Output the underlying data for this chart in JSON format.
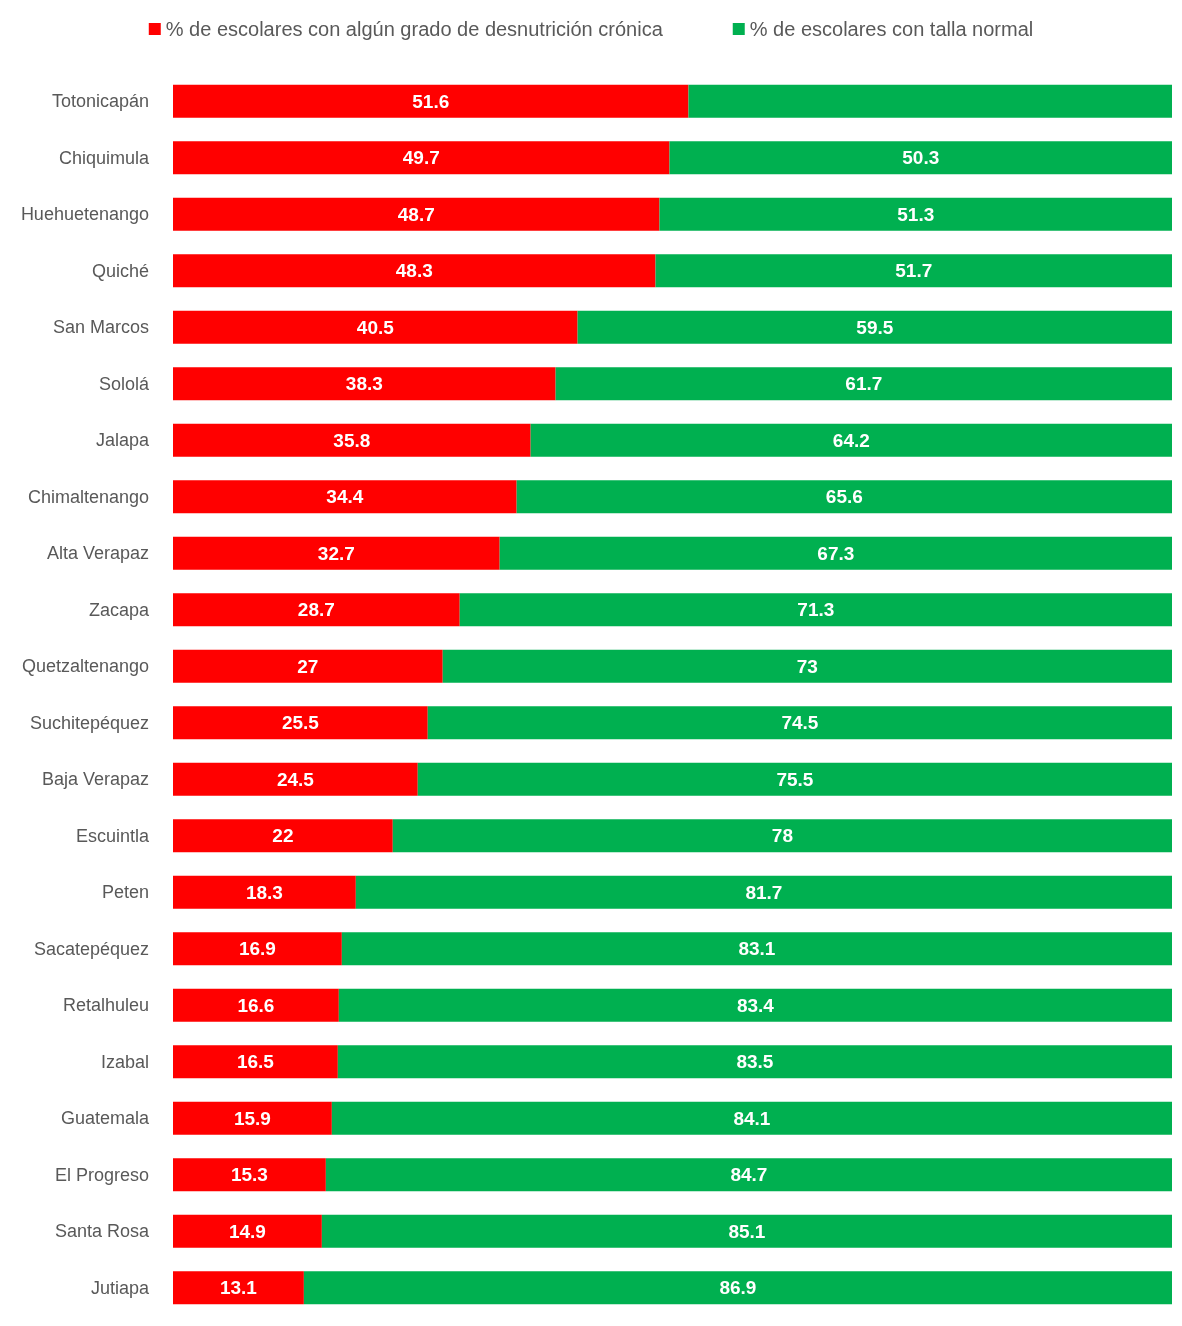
{
  "chart_data": {
    "type": "bar",
    "orientation": "horizontal",
    "stacked": true,
    "legend": "top",
    "xlim": [
      0,
      100
    ],
    "tick_labels": "y",
    "categories": [
      "Totonicapán",
      "Chiquimula",
      "Huehuetenango",
      "Quiché",
      "San Marcos",
      "Sololá",
      "Jalapa",
      "Chimaltenango",
      "Alta Verapaz",
      "Zacapa",
      "Quetzaltenango",
      "Suchitepéquez",
      "Baja Verapaz",
      "Escuintla",
      "Peten",
      "Sacatepéquez",
      "Retalhuleu",
      "Izabal",
      "Guatemala",
      "El Progreso",
      "Santa Rosa",
      "Jutiapa"
    ],
    "series": [
      {
        "name": "% de escolares con algún grado de desnutrición crónica",
        "color": "#ff0000",
        "values": [
          51.6,
          49.7,
          48.7,
          48.3,
          40.5,
          38.3,
          35.8,
          34.4,
          32.7,
          28.7,
          27,
          25.5,
          24.5,
          22,
          18.3,
          16.9,
          16.6,
          16.5,
          15.9,
          15.3,
          14.9,
          13.1
        ],
        "value_labels": [
          "51.6",
          "49.7",
          "48.7",
          "48.3",
          "40.5",
          "38.3",
          "35.8",
          "34.4",
          "32.7",
          "28.7",
          "27",
          "25.5",
          "24.5",
          "22",
          "18.3",
          "16.9",
          "16.6",
          "16.5",
          "15.9",
          "15.3",
          "14.9",
          "13.1"
        ]
      },
      {
        "name": "% de escolares con talla normal",
        "color": "#00b050",
        "values": [
          48.4,
          50.3,
          51.3,
          51.7,
          59.5,
          61.7,
          64.2,
          65.6,
          67.3,
          71.3,
          73,
          74.5,
          75.5,
          78,
          81.7,
          83.1,
          83.4,
          83.5,
          84.1,
          84.7,
          85.1,
          86.9
        ],
        "value_labels": [
          null,
          "50.3",
          "51.3",
          "51.7",
          "59.5",
          "61.7",
          "64.2",
          "65.6",
          "67.3",
          "71.3",
          "73",
          "74.5",
          "75.5",
          "78",
          "81.7",
          "83.1",
          "83.4",
          "83.5",
          "84.1",
          "84.7",
          "85.1",
          "86.9"
        ]
      }
    ]
  }
}
